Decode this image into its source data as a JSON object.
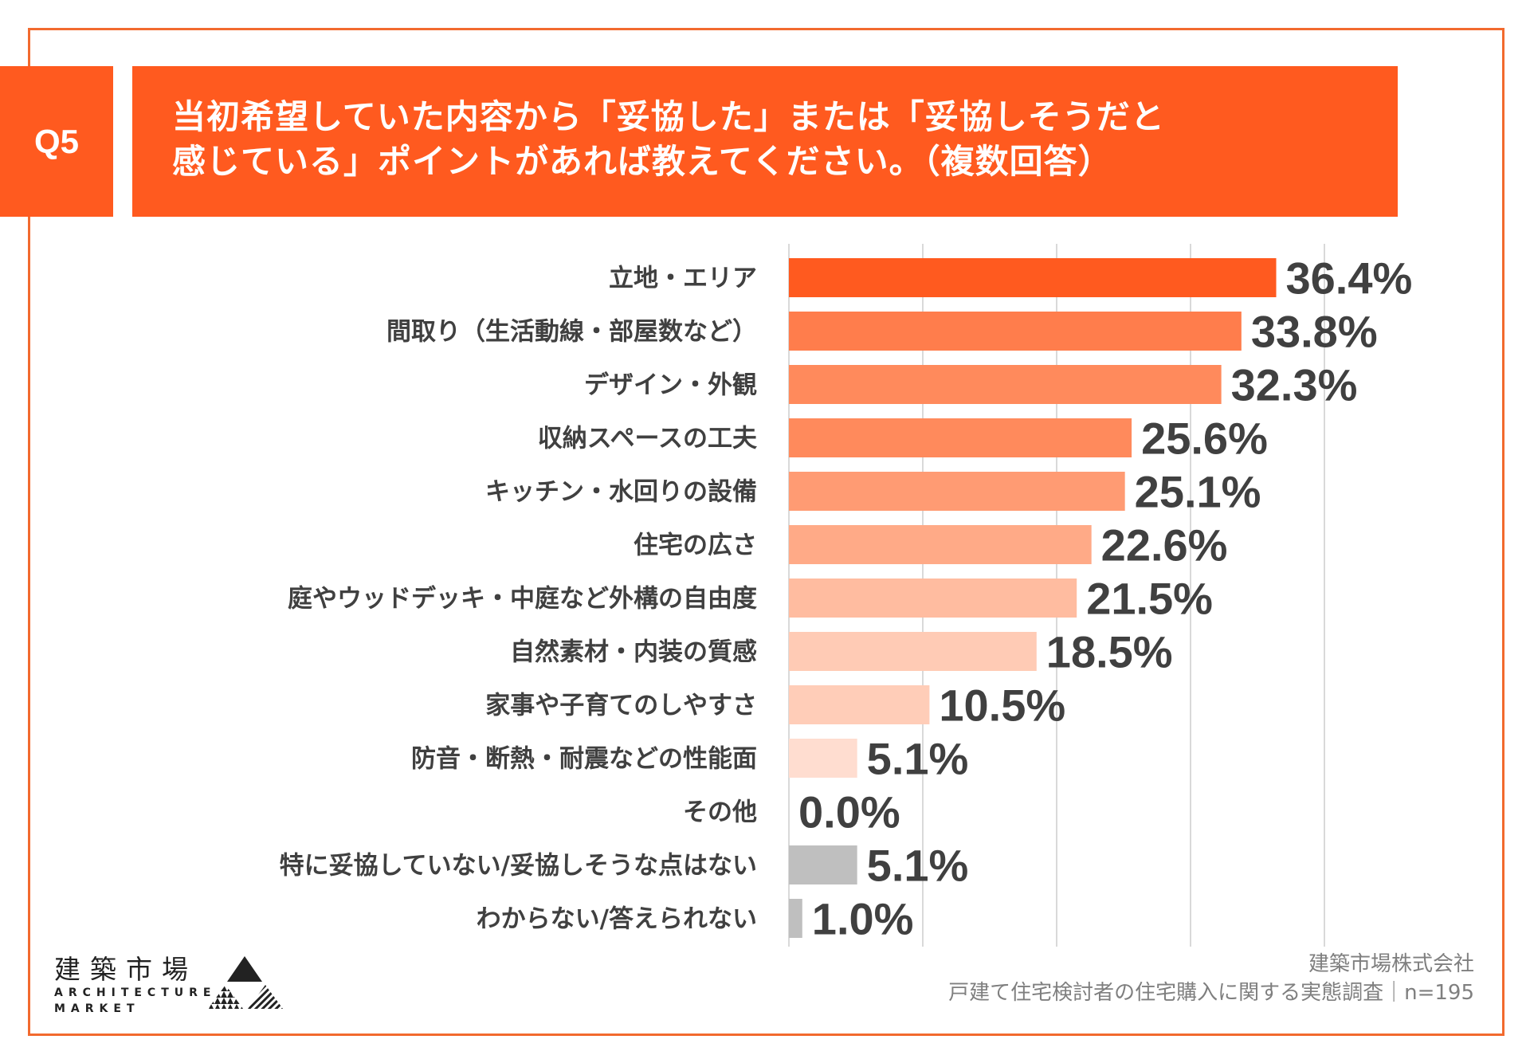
{
  "question": {
    "number": "Q5",
    "title_lines": [
      "当初希望していた内容から「妥協した」または「妥協しそうだと",
      "感じている」ポイントがあれば教えてください。（複数回答）"
    ]
  },
  "colors": {
    "accent": "#FF5A1F",
    "frame": "#F26A2E",
    "text": "#404040",
    "grid": "#D9D9D9",
    "gray_bar": "#BFBFBF"
  },
  "chart_data": {
    "type": "bar",
    "orientation": "horizontal",
    "title": "当初希望していた内容から「妥協した」または「妥協しそうだと感じている」ポイントがあれば教えてください。（複数回答）",
    "xlabel": "",
    "ylabel": "",
    "unit": "%",
    "xlim": [
      0,
      40
    ],
    "grid": true,
    "grid_step": 10,
    "categories": [
      "立地・エリア",
      "間取り（生活動線・部屋数など）",
      "デザイン・外観",
      "収納スペースの工夫",
      "キッチン・水回りの設備",
      "住宅の広さ",
      "庭やウッドデッキ・中庭など外構の自由度",
      "自然素材・内装の質感",
      "家事や子育てのしやすさ",
      "防音・断熱・耐震などの性能面",
      "その他",
      "特に妥協していない/妥協しそうな点はない",
      "わからない/答えられない"
    ],
    "values": [
      36.4,
      33.8,
      32.3,
      25.6,
      25.1,
      22.6,
      21.5,
      18.5,
      10.5,
      5.1,
      0.0,
      5.1,
      1.0
    ],
    "value_labels": [
      "36.4%",
      "33.8%",
      "32.3%",
      "25.6%",
      "25.1%",
      "22.6%",
      "21.5%",
      "18.5%",
      "10.5%",
      "5.1%",
      "0.0%",
      "5.1%",
      "1.0%"
    ],
    "bar_colors": [
      "#FF5A1F",
      "#FF7D4C",
      "#FF8A5C",
      "#FF8A5C",
      "#FF9B73",
      "#FFAA87",
      "#FFBCA0",
      "#FFCBB5",
      "#FFCDB8",
      "#FFDDD0",
      "#FFDDD0",
      "#BFBFBF",
      "#BFBFBF"
    ]
  },
  "footer": {
    "company": "建築市場株式会社",
    "survey": "戸建て住宅検討者の住宅購入に関する実態調査｜n=195"
  },
  "logo": {
    "jp": "建築市場",
    "en_line1": "ARCHITECTURE",
    "en_line2": "MARKET"
  }
}
